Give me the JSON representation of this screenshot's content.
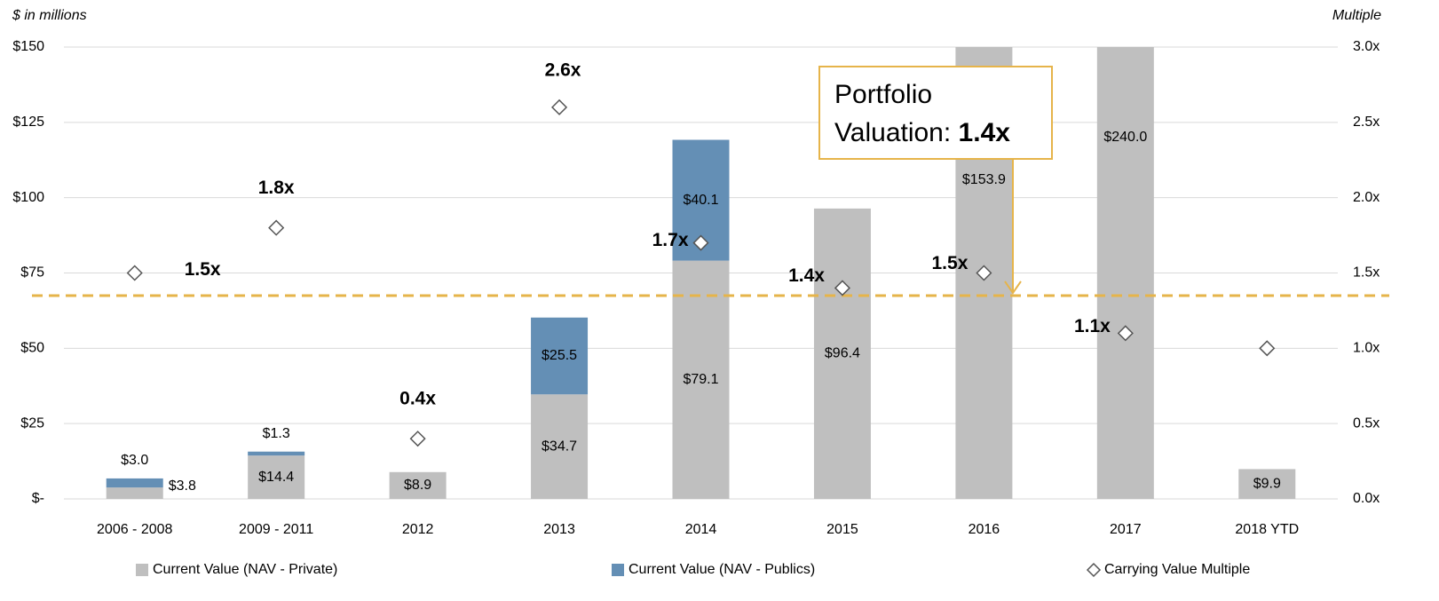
{
  "chart_data": {
    "type": "bar",
    "ylabel": "$ in millions",
    "y2label": "Multiple",
    "categories": [
      "2006 - 2008",
      "2009 - 2011",
      "2012",
      "2013",
      "2014",
      "2015",
      "2016",
      "2017",
      "2018 YTD"
    ],
    "series": [
      {
        "name": "Current Value (NAV - Private)",
        "color": "#bfbfbf",
        "values": [
          3.8,
          14.4,
          8.9,
          34.7,
          79.1,
          96.4,
          153.9,
          240.0,
          9.9
        ],
        "value_labels": [
          "$3.8",
          "$14.4",
          "$8.9",
          "$34.7",
          "$79.1",
          "$96.4",
          "$153.9",
          "$240.0",
          "$9.9"
        ]
      },
      {
        "name": "Current Value (NAV - Publics)",
        "color": "#648fb5",
        "values": [
          3.0,
          1.3,
          null,
          25.5,
          40.1,
          null,
          null,
          null,
          null
        ],
        "value_labels": [
          "$3.0",
          "$1.3",
          null,
          "$25.5",
          "$40.1",
          null,
          null,
          null,
          null
        ]
      },
      {
        "name": "Carrying Value Multiple",
        "type": "scatter",
        "axis": "y2",
        "color": "#555555",
        "values": [
          1.5,
          1.8,
          0.4,
          2.6,
          1.7,
          1.4,
          1.5,
          1.1,
          1.0
        ],
        "value_labels": [
          "1.5x",
          "1.8x",
          "0.4x",
          "2.6x",
          "1.7x",
          "1.4x",
          "1.5x",
          "1.1x",
          null
        ]
      }
    ],
    "stacked": true,
    "ylim": [
      0,
      150
    ],
    "yticks": [
      {
        "value": 0,
        "label": "$-"
      },
      {
        "value": 25,
        "label": "$25"
      },
      {
        "value": 50,
        "label": "$50"
      },
      {
        "value": 75,
        "label": "$75"
      },
      {
        "value": 100,
        "label": "$100"
      },
      {
        "value": 125,
        "label": "$125"
      },
      {
        "value": 150,
        "label": "$150"
      }
    ],
    "y2lim": [
      0,
      3
    ],
    "y2ticks": [
      {
        "value": 0,
        "label": "0.0x"
      },
      {
        "value": 0.5,
        "label": "0.5x"
      },
      {
        "value": 1,
        "label": "1.0x"
      },
      {
        "value": 1.5,
        "label": "1.5x"
      },
      {
        "value": 2,
        "label": "2.0x"
      },
      {
        "value": 2.5,
        "label": "2.5x"
      },
      {
        "value": 3,
        "label": "3.0x"
      }
    ],
    "grid": true,
    "reference_line": {
      "value": 1.35,
      "axis": "y2",
      "color": "#e6b44a"
    },
    "annotation": {
      "lines": [
        "Portfolio",
        "Valuation: "
      ],
      "emphasis": "1.4x"
    },
    "legend": "bottom"
  }
}
